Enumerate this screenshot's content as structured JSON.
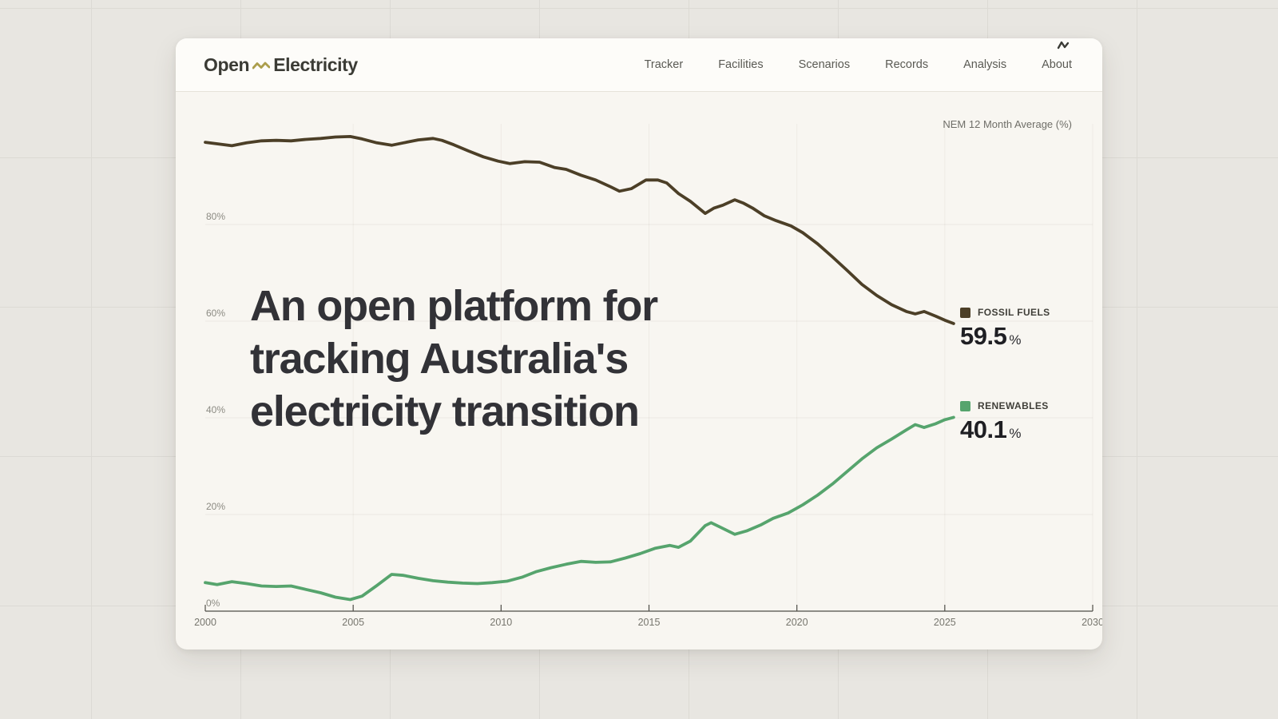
{
  "page": {
    "background_color": "#e8e6e1",
    "card_background": "#f8f6f1",
    "header_background": "#fdfcf9"
  },
  "header": {
    "logo": {
      "part1": "Open",
      "part2": "Electricity",
      "squiggle_color": "#ac9e4c"
    },
    "nav": [
      {
        "label": "Tracker"
      },
      {
        "label": "Facilities"
      },
      {
        "label": "Scenarios"
      },
      {
        "label": "Records"
      },
      {
        "label": "Analysis"
      },
      {
        "label": "About"
      }
    ]
  },
  "hero": {
    "headline_lines": [
      "An open platform for",
      "tracking Australia's",
      "electricity transition"
    ]
  },
  "chart_data": {
    "type": "line",
    "title": "NEM 12 Month Average (%)",
    "grid": true,
    "legend_position": "right-of-line-end",
    "x_axis": {
      "range": [
        2000,
        2030
      ],
      "ticks": [
        2000,
        2005,
        2010,
        2015,
        2020,
        2025,
        2030
      ]
    },
    "y_axis": {
      "range": [
        0,
        100
      ],
      "unit": "%",
      "ticks": [
        {
          "value": 0,
          "label": "0%"
        },
        {
          "value": 20,
          "label": "20%"
        },
        {
          "value": 40,
          "label": "40%"
        },
        {
          "value": 60,
          "label": "60%"
        },
        {
          "value": 80,
          "label": "80%"
        }
      ]
    },
    "series": [
      {
        "name": "Fossil Fuels",
        "label": "FOSSIL FUELS",
        "color": "#4c3f27",
        "current_value": "59.5",
        "unit": "%",
        "points": [
          [
            2000.0,
            97.0
          ],
          [
            2000.4,
            96.7
          ],
          [
            2000.9,
            96.3
          ],
          [
            2001.4,
            96.9
          ],
          [
            2001.9,
            97.3
          ],
          [
            2002.4,
            97.4
          ],
          [
            2002.9,
            97.3
          ],
          [
            2003.4,
            97.6
          ],
          [
            2003.9,
            97.8
          ],
          [
            2004.4,
            98.1
          ],
          [
            2004.9,
            98.2
          ],
          [
            2005.3,
            97.7
          ],
          [
            2005.8,
            96.9
          ],
          [
            2006.3,
            96.4
          ],
          [
            2006.7,
            96.9
          ],
          [
            2007.2,
            97.5
          ],
          [
            2007.7,
            97.8
          ],
          [
            2008.0,
            97.4
          ],
          [
            2008.4,
            96.5
          ],
          [
            2008.9,
            95.2
          ],
          [
            2009.4,
            94.0
          ],
          [
            2009.9,
            93.1
          ],
          [
            2010.3,
            92.6
          ],
          [
            2010.8,
            93.0
          ],
          [
            2011.3,
            92.9
          ],
          [
            2011.8,
            91.8
          ],
          [
            2012.2,
            91.4
          ],
          [
            2012.7,
            90.2
          ],
          [
            2013.2,
            89.2
          ],
          [
            2013.7,
            87.8
          ],
          [
            2014.0,
            86.9
          ],
          [
            2014.4,
            87.4
          ],
          [
            2014.9,
            89.2
          ],
          [
            2015.3,
            89.2
          ],
          [
            2015.6,
            88.6
          ],
          [
            2016.0,
            86.4
          ],
          [
            2016.4,
            84.8
          ],
          [
            2016.9,
            82.3
          ],
          [
            2017.2,
            83.4
          ],
          [
            2017.5,
            84.0
          ],
          [
            2017.9,
            85.1
          ],
          [
            2018.2,
            84.4
          ],
          [
            2018.5,
            83.4
          ],
          [
            2018.9,
            81.8
          ],
          [
            2019.3,
            80.8
          ],
          [
            2019.8,
            79.7
          ],
          [
            2020.2,
            78.3
          ],
          [
            2020.7,
            76.0
          ],
          [
            2021.2,
            73.3
          ],
          [
            2021.7,
            70.5
          ],
          [
            2022.2,
            67.6
          ],
          [
            2022.7,
            65.3
          ],
          [
            2023.2,
            63.4
          ],
          [
            2023.7,
            62.0
          ],
          [
            2024.0,
            61.5
          ],
          [
            2024.3,
            62.0
          ],
          [
            2024.7,
            61.0
          ],
          [
            2025.0,
            60.2
          ],
          [
            2025.3,
            59.5
          ]
        ]
      },
      {
        "name": "Renewables",
        "label": "RENEWABLES",
        "color": "#56a46d",
        "current_value": "40.1",
        "unit": "%",
        "points": [
          [
            2000.0,
            5.9
          ],
          [
            2000.4,
            5.5
          ],
          [
            2000.9,
            6.1
          ],
          [
            2001.4,
            5.7
          ],
          [
            2001.9,
            5.2
          ],
          [
            2002.4,
            5.1
          ],
          [
            2002.9,
            5.2
          ],
          [
            2003.4,
            4.5
          ],
          [
            2003.9,
            3.8
          ],
          [
            2004.4,
            2.9
          ],
          [
            2004.9,
            2.4
          ],
          [
            2005.3,
            3.1
          ],
          [
            2005.8,
            5.3
          ],
          [
            2006.3,
            7.6
          ],
          [
            2006.7,
            7.4
          ],
          [
            2007.2,
            6.8
          ],
          [
            2007.7,
            6.3
          ],
          [
            2008.2,
            6.0
          ],
          [
            2008.7,
            5.8
          ],
          [
            2009.2,
            5.7
          ],
          [
            2009.7,
            5.9
          ],
          [
            2010.2,
            6.2
          ],
          [
            2010.7,
            7.0
          ],
          [
            2011.2,
            8.2
          ],
          [
            2011.7,
            9.0
          ],
          [
            2012.2,
            9.7
          ],
          [
            2012.7,
            10.3
          ],
          [
            2013.2,
            10.1
          ],
          [
            2013.7,
            10.2
          ],
          [
            2014.2,
            11.0
          ],
          [
            2014.7,
            11.9
          ],
          [
            2015.2,
            13.0
          ],
          [
            2015.7,
            13.6
          ],
          [
            2016.0,
            13.2
          ],
          [
            2016.4,
            14.5
          ],
          [
            2016.9,
            17.7
          ],
          [
            2017.1,
            18.3
          ],
          [
            2017.4,
            17.4
          ],
          [
            2017.9,
            15.9
          ],
          [
            2018.3,
            16.6
          ],
          [
            2018.8,
            17.9
          ],
          [
            2019.2,
            19.2
          ],
          [
            2019.7,
            20.3
          ],
          [
            2020.2,
            22.0
          ],
          [
            2020.7,
            24.0
          ],
          [
            2021.2,
            26.3
          ],
          [
            2021.7,
            28.9
          ],
          [
            2022.2,
            31.5
          ],
          [
            2022.7,
            33.8
          ],
          [
            2023.2,
            35.6
          ],
          [
            2023.7,
            37.5
          ],
          [
            2024.0,
            38.6
          ],
          [
            2024.3,
            38.0
          ],
          [
            2024.7,
            38.8
          ],
          [
            2025.0,
            39.6
          ],
          [
            2025.3,
            40.1
          ]
        ]
      }
    ]
  }
}
